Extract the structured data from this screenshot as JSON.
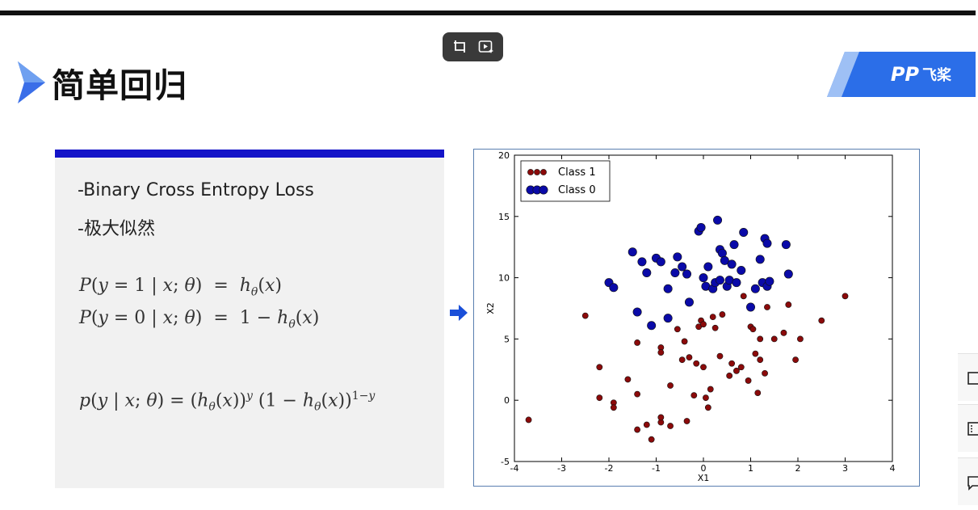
{
  "slide": {
    "title": "简单回归",
    "logo": {
      "mark": "PP",
      "text": "飞桨"
    },
    "bullets": [
      "-Binary Cross Entropy Loss",
      "-极大似然"
    ]
  },
  "toolbar": {
    "icons": [
      "crop-icon",
      "ai-play-icon"
    ]
  },
  "side_tools": {
    "icons": [
      "square-icon",
      "list-icon",
      "comment-icon"
    ]
  },
  "colors": {
    "accent_blue": "#1414c8",
    "class1": "#8b0a0a",
    "class0": "#0a0aa8",
    "logo_blue": "#2b6ee8"
  },
  "chart_data": {
    "type": "scatter",
    "xlabel": "X1",
    "ylabel": "X2",
    "xlim": [
      -4,
      4
    ],
    "ylim": [
      -5,
      20
    ],
    "xticks": [
      -4,
      -3,
      -2,
      -1,
      0,
      1,
      2,
      3,
      4
    ],
    "yticks": [
      -5,
      0,
      5,
      10,
      15,
      20
    ],
    "legend_position": "top-left",
    "series": [
      {
        "name": "Class 1",
        "color": "#8b0a0a",
        "points": [
          [
            -3.7,
            -1.6
          ],
          [
            -2.5,
            6.9
          ],
          [
            -2.2,
            2.7
          ],
          [
            -2.2,
            0.2
          ],
          [
            -1.9,
            -0.2
          ],
          [
            -1.9,
            -0.6
          ],
          [
            -1.6,
            1.7
          ],
          [
            -1.4,
            4.7
          ],
          [
            -1.4,
            0.5
          ],
          [
            -1.4,
            -2.4
          ],
          [
            -1.2,
            -2.0
          ],
          [
            -1.1,
            -3.2
          ],
          [
            -0.9,
            -1.8
          ],
          [
            -0.9,
            -1.4
          ],
          [
            -0.9,
            4.3
          ],
          [
            -0.9,
            3.9
          ],
          [
            -0.7,
            -2.1
          ],
          [
            -0.7,
            1.2
          ],
          [
            -0.55,
            5.8
          ],
          [
            -0.45,
            3.3
          ],
          [
            -0.4,
            4.8
          ],
          [
            -0.35,
            -1.7
          ],
          [
            -0.3,
            3.5
          ],
          [
            -0.2,
            0.4
          ],
          [
            -0.15,
            3.0
          ],
          [
            -0.1,
            6.0
          ],
          [
            -0.05,
            6.5
          ],
          [
            0.0,
            2.7
          ],
          [
            0.0,
            6.2
          ],
          [
            0.05,
            0.2
          ],
          [
            0.1,
            -0.6
          ],
          [
            0.15,
            0.9
          ],
          [
            0.2,
            6.8
          ],
          [
            0.25,
            5.9
          ],
          [
            0.35,
            3.6
          ],
          [
            0.4,
            7.0
          ],
          [
            0.55,
            2.0
          ],
          [
            0.6,
            3.0
          ],
          [
            0.7,
            2.4
          ],
          [
            0.8,
            2.7
          ],
          [
            0.85,
            8.5
          ],
          [
            0.95,
            1.6
          ],
          [
            1.0,
            6.0
          ],
          [
            1.05,
            5.8
          ],
          [
            1.1,
            3.8
          ],
          [
            1.15,
            0.6
          ],
          [
            1.2,
            5.0
          ],
          [
            1.2,
            3.3
          ],
          [
            1.3,
            2.2
          ],
          [
            1.35,
            7.6
          ],
          [
            1.5,
            5.0
          ],
          [
            1.7,
            5.5
          ],
          [
            1.8,
            7.8
          ],
          [
            1.95,
            3.3
          ],
          [
            2.05,
            5.0
          ],
          [
            2.5,
            6.5
          ],
          [
            3.0,
            8.5
          ]
        ]
      },
      {
        "name": "Class 0",
        "color": "#0a0aa8",
        "points": [
          [
            -2.0,
            9.6
          ],
          [
            -1.9,
            9.2
          ],
          [
            -1.5,
            12.1
          ],
          [
            -1.4,
            7.2
          ],
          [
            -1.3,
            11.3
          ],
          [
            -1.2,
            10.4
          ],
          [
            -1.1,
            6.1
          ],
          [
            -1.0,
            11.6
          ],
          [
            -0.9,
            11.3
          ],
          [
            -0.75,
            9.1
          ],
          [
            -0.75,
            6.7
          ],
          [
            -0.6,
            10.4
          ],
          [
            -0.55,
            11.7
          ],
          [
            -0.45,
            10.9
          ],
          [
            -0.35,
            10.3
          ],
          [
            -0.3,
            8.0
          ],
          [
            -0.1,
            13.8
          ],
          [
            -0.05,
            14.1
          ],
          [
            0.0,
            10.0
          ],
          [
            0.05,
            9.3
          ],
          [
            0.1,
            10.9
          ],
          [
            0.2,
            9.1
          ],
          [
            0.25,
            9.6
          ],
          [
            0.3,
            14.7
          ],
          [
            0.35,
            12.3
          ],
          [
            0.35,
            9.8
          ],
          [
            0.4,
            12.0
          ],
          [
            0.45,
            11.4
          ],
          [
            0.5,
            9.3
          ],
          [
            0.55,
            9.8
          ],
          [
            0.6,
            11.1
          ],
          [
            0.65,
            12.7
          ],
          [
            0.7,
            9.6
          ],
          [
            0.8,
            10.6
          ],
          [
            0.85,
            13.7
          ],
          [
            1.0,
            7.6
          ],
          [
            1.1,
            9.1
          ],
          [
            1.2,
            11.5
          ],
          [
            1.25,
            9.6
          ],
          [
            1.3,
            13.2
          ],
          [
            1.35,
            12.8
          ],
          [
            1.35,
            9.3
          ],
          [
            1.4,
            9.7
          ],
          [
            1.75,
            12.7
          ],
          [
            1.8,
            10.3
          ]
        ]
      }
    ]
  }
}
